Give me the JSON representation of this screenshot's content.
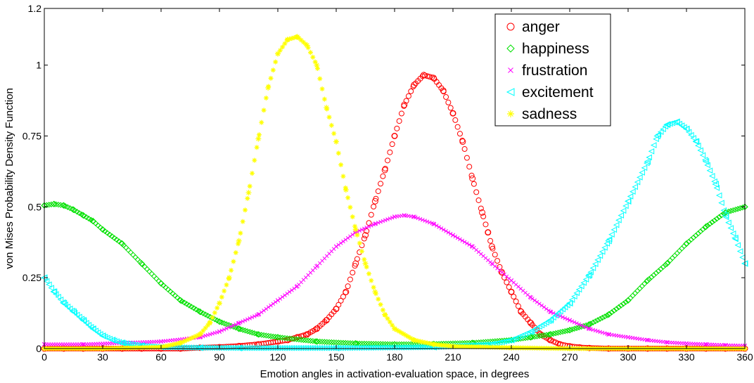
{
  "chart_data": {
    "type": "scatter",
    "xlabel": "Emotion angles in activation-evaluation space, in degrees",
    "ylabel": "von Mises Probability Density Function",
    "xlim": [
      0,
      360
    ],
    "ylim": [
      0,
      1.2
    ],
    "x_ticks": [
      0,
      30,
      60,
      90,
      120,
      150,
      180,
      210,
      240,
      270,
      300,
      330,
      360
    ],
    "x_tick_labels": [
      "0",
      "30",
      "60",
      "90",
      "120",
      "150",
      "180",
      "210",
      "240",
      "270",
      "300",
      "330",
      "360"
    ],
    "y_ticks": [
      0,
      0.25,
      0.5,
      0.75,
      1,
      1.2
    ],
    "y_tick_labels": [
      "0",
      "0.25",
      "0.5",
      "0.75",
      "1",
      "1.2"
    ],
    "grid": false,
    "legend_position": "top-right",
    "series": [
      {
        "name": "anger",
        "marker": "circle",
        "color": "#ff0000",
        "x": [
          0,
          10,
          20,
          30,
          40,
          50,
          60,
          70,
          80,
          90,
          100,
          110,
          120,
          125,
          130,
          135,
          140,
          145,
          150,
          155,
          160,
          165,
          170,
          175,
          180,
          185,
          190,
          195,
          200,
          205,
          210,
          215,
          220,
          225,
          228,
          230,
          235,
          240,
          245,
          250,
          255,
          260,
          265,
          270,
          275,
          280,
          290,
          300,
          310,
          320,
          330,
          340,
          350,
          360
        ],
        "y": [
          0,
          0,
          0,
          0,
          0,
          0,
          0,
          0,
          0.003,
          0.005,
          0.009,
          0.015,
          0.025,
          0.03,
          0.04,
          0.05,
          0.07,
          0.1,
          0.14,
          0.2,
          0.3,
          0.4,
          0.52,
          0.63,
          0.75,
          0.86,
          0.93,
          0.965,
          0.955,
          0.91,
          0.83,
          0.73,
          0.6,
          0.48,
          0.41,
          0.36,
          0.27,
          0.2,
          0.13,
          0.09,
          0.05,
          0.03,
          0.015,
          0.008,
          0.004,
          0.002,
          0,
          0,
          0,
          0,
          0,
          0,
          0,
          0
        ]
      },
      {
        "name": "happiness",
        "marker": "diamond",
        "color": "#00e000",
        "x": [
          0,
          5,
          10,
          15,
          20,
          25,
          30,
          40,
          50,
          60,
          70,
          80,
          90,
          100,
          110,
          120,
          140,
          160,
          180,
          200,
          220,
          240,
          250,
          260,
          270,
          280,
          290,
          300,
          310,
          320,
          330,
          340,
          350,
          360
        ],
        "y": [
          0.505,
          0.51,
          0.505,
          0.49,
          0.47,
          0.45,
          0.42,
          0.37,
          0.3,
          0.23,
          0.17,
          0.13,
          0.095,
          0.07,
          0.05,
          0.04,
          0.025,
          0.018,
          0.015,
          0.016,
          0.02,
          0.03,
          0.04,
          0.05,
          0.065,
          0.085,
          0.12,
          0.17,
          0.24,
          0.3,
          0.37,
          0.43,
          0.48,
          0.5
        ]
      },
      {
        "name": "frustration",
        "marker": "x",
        "color": "#ff00ff",
        "x": [
          0,
          20,
          40,
          60,
          80,
          90,
          100,
          110,
          120,
          130,
          140,
          150,
          160,
          170,
          180,
          185,
          190,
          200,
          210,
          220,
          230,
          240,
          250,
          260,
          270,
          280,
          290,
          300,
          310,
          320,
          330,
          340,
          350,
          360
        ],
        "y": [
          0.015,
          0.015,
          0.02,
          0.025,
          0.04,
          0.06,
          0.09,
          0.12,
          0.17,
          0.22,
          0.29,
          0.36,
          0.41,
          0.44,
          0.465,
          0.47,
          0.465,
          0.44,
          0.4,
          0.36,
          0.3,
          0.24,
          0.18,
          0.13,
          0.1,
          0.07,
          0.05,
          0.04,
          0.03,
          0.022,
          0.018,
          0.015,
          0.012,
          0.01
        ]
      },
      {
        "name": "excitement",
        "marker": "triangle-left",
        "color": "#00ffff",
        "x": [
          0,
          5,
          10,
          15,
          20,
          25,
          30,
          35,
          40,
          50,
          60,
          80,
          100,
          150,
          200,
          230,
          240,
          250,
          260,
          270,
          280,
          290,
          300,
          310,
          315,
          320,
          325,
          330,
          335,
          340,
          345,
          350,
          355,
          360
        ],
        "y": [
          0.25,
          0.2,
          0.16,
          0.13,
          0.1,
          0.07,
          0.045,
          0.03,
          0.02,
          0.01,
          0.005,
          0.003,
          0.002,
          0.002,
          0.005,
          0.015,
          0.03,
          0.06,
          0.1,
          0.16,
          0.26,
          0.38,
          0.52,
          0.66,
          0.75,
          0.79,
          0.8,
          0.775,
          0.73,
          0.66,
          0.58,
          0.47,
          0.39,
          0.3
        ]
      },
      {
        "name": "sadness",
        "marker": "asterisk",
        "color": "#ffff00",
        "x": [
          0,
          30,
          60,
          70,
          80,
          85,
          90,
          95,
          100,
          105,
          110,
          115,
          120,
          125,
          130,
          135,
          140,
          145,
          150,
          155,
          160,
          165,
          170,
          175,
          180,
          190,
          200,
          210,
          240,
          270,
          300,
          330,
          360
        ],
        "y": [
          0,
          0,
          0.005,
          0.02,
          0.05,
          0.09,
          0.16,
          0.25,
          0.38,
          0.55,
          0.74,
          0.92,
          1.04,
          1.09,
          1.1,
          1.07,
          1.0,
          0.85,
          0.73,
          0.56,
          0.42,
          0.3,
          0.2,
          0.12,
          0.07,
          0.03,
          0.015,
          0.008,
          0.003,
          0,
          0,
          0,
          0
        ]
      }
    ]
  }
}
